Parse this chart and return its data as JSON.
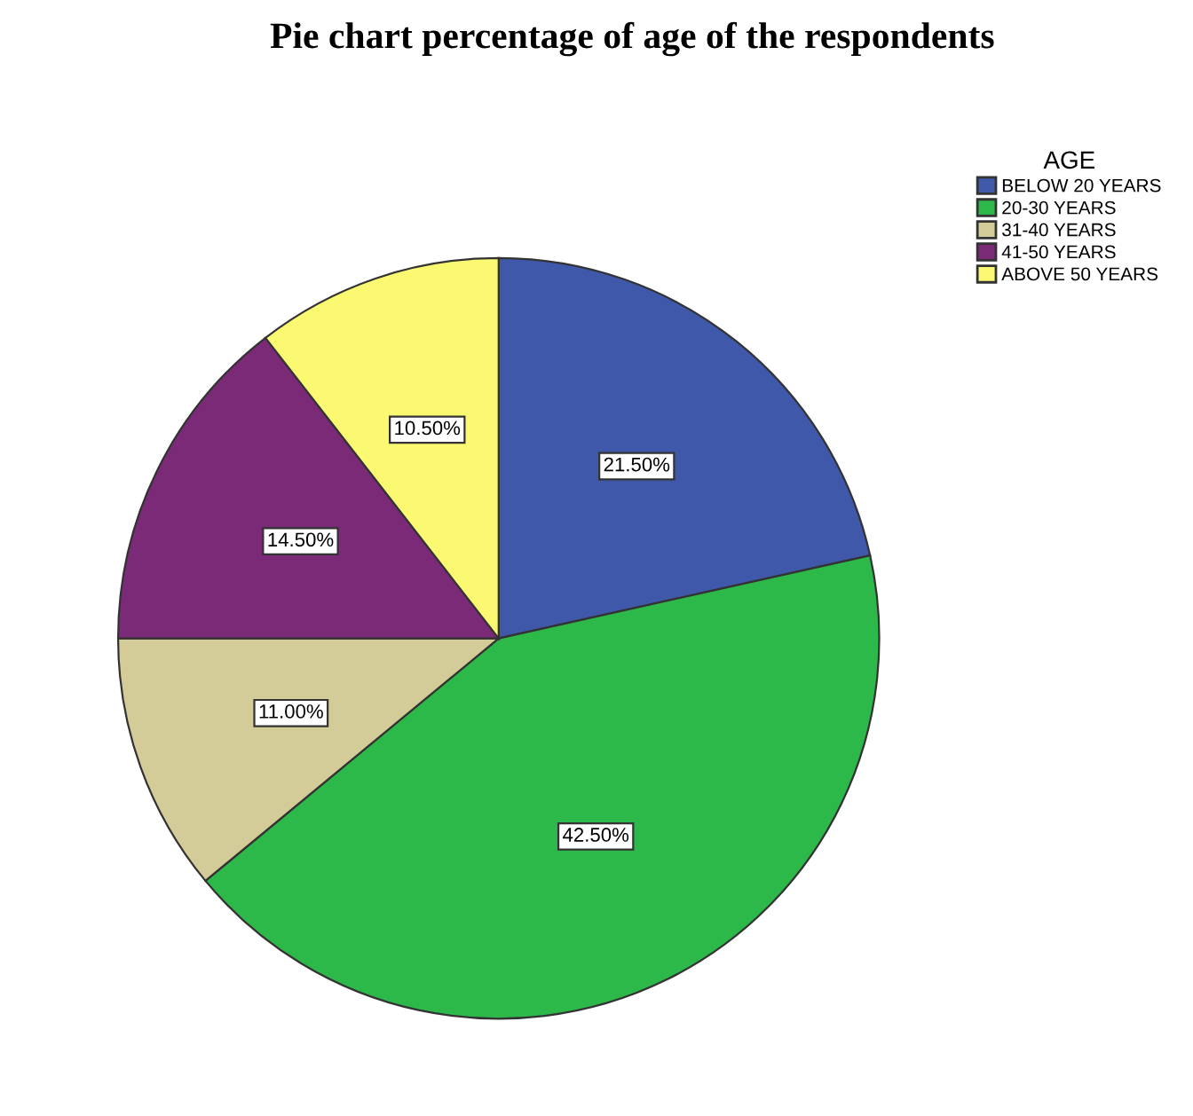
{
  "chart_data": {
    "type": "pie",
    "title": "Pie chart percentage of age of the respondents",
    "legend_title": "AGE",
    "legend": "top right",
    "categories": [
      "BELOW 20 YEARS",
      "20-30 YEARS",
      "31-40 YEARS",
      "41-50 YEARS",
      "ABOVE 50 YEARS"
    ],
    "values": [
      21.5,
      42.5,
      11.0,
      14.5,
      10.5
    ],
    "value_labels": [
      "21.50%",
      "42.50%",
      "11.00%",
      "14.50%",
      "10.50%"
    ],
    "colors": [
      "#3f58aa",
      "#2db84a",
      "#d3cc98",
      "#7b2a78",
      "#fbf871"
    ]
  }
}
